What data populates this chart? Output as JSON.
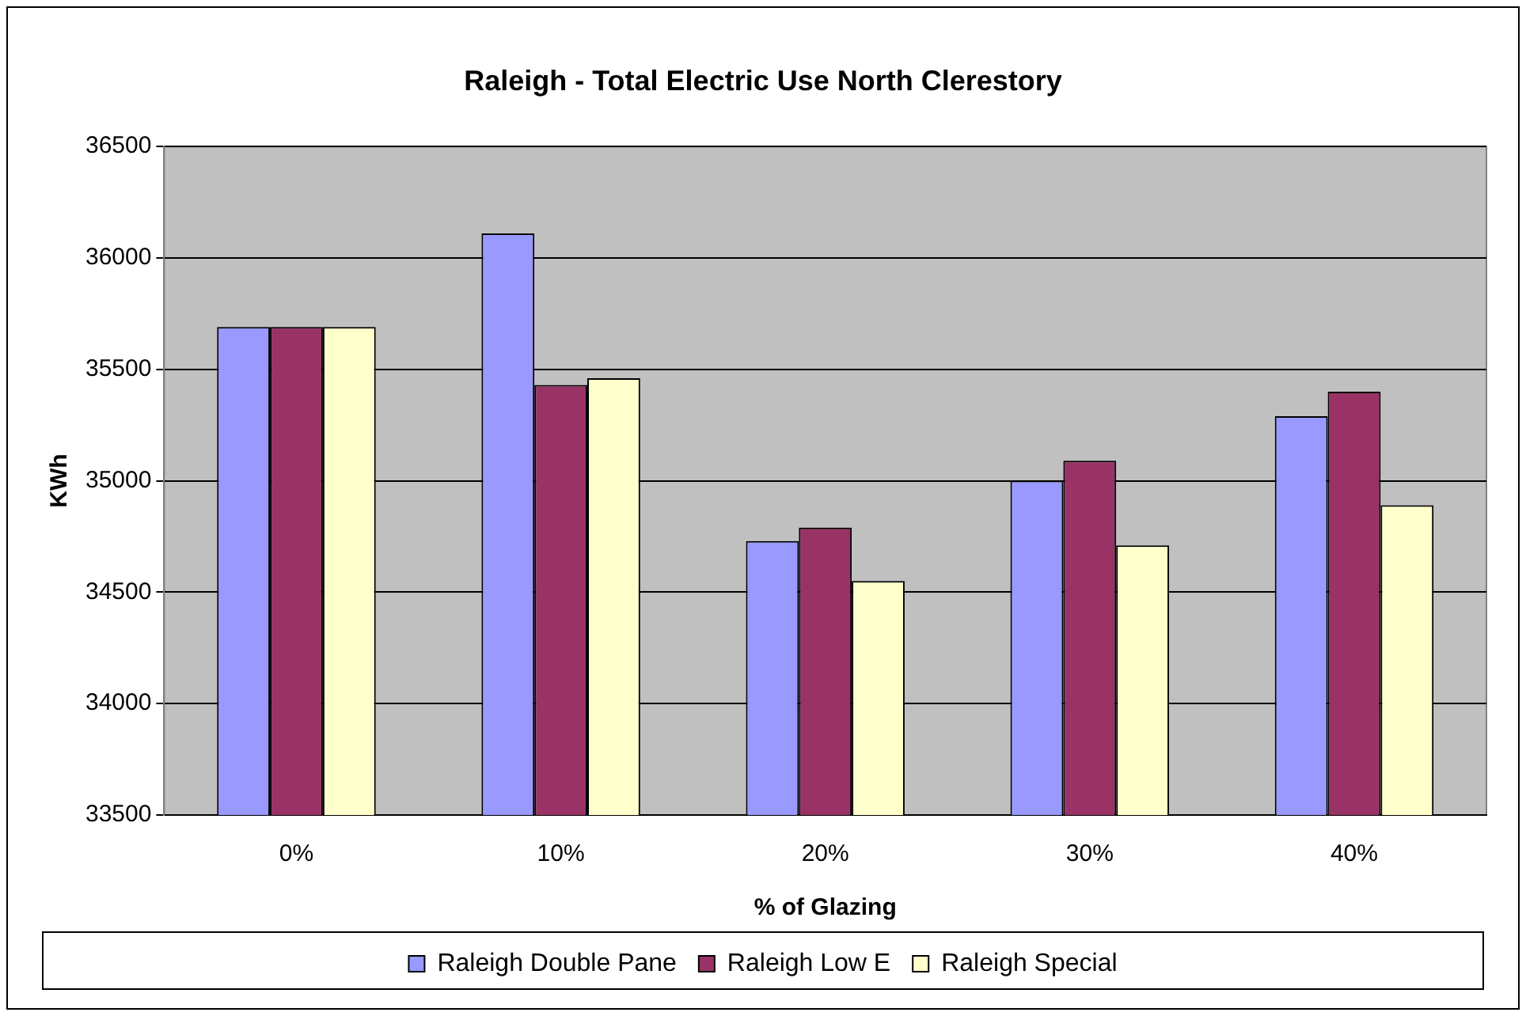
{
  "chart_data": {
    "type": "bar",
    "title": "Raleigh - Total Electric Use North Clerestory",
    "xlabel": "% of Glazing",
    "ylabel": "KWh",
    "categories": [
      "0%",
      "10%",
      "20%",
      "30%",
      "40%"
    ],
    "series": [
      {
        "name": "Raleigh Double Pane",
        "color": "#9999ff",
        "values": [
          35690,
          36110,
          34730,
          35000,
          35290
        ]
      },
      {
        "name": "Raleigh Low E",
        "color": "#993366",
        "values": [
          35690,
          35430,
          34790,
          35090,
          35400
        ]
      },
      {
        "name": "Raleigh Special",
        "color": "#ffffcc",
        "values": [
          35690,
          35460,
          34550,
          34710,
          34890
        ]
      }
    ],
    "ylim": [
      33500,
      36500
    ],
    "yticks": [
      33500,
      34000,
      34500,
      35000,
      35500,
      36000,
      36500
    ],
    "grid": "y",
    "legend": "bottom"
  }
}
